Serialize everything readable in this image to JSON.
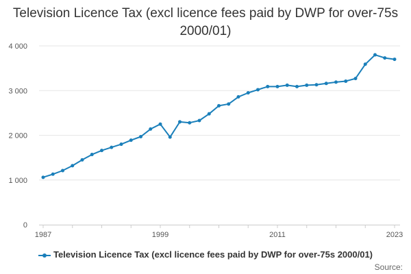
{
  "chart_data": {
    "type": "line",
    "title": "Television Licence Tax (excl licence fees paid by DWP for over-75s 2000/01)",
    "xlabel": "",
    "ylabel": "",
    "x": [
      1987,
      1988,
      1989,
      1990,
      1991,
      1992,
      1993,
      1994,
      1995,
      1996,
      1997,
      1998,
      1999,
      2000,
      2001,
      2002,
      2003,
      2004,
      2005,
      2006,
      2007,
      2008,
      2009,
      2010,
      2011,
      2012,
      2013,
      2014,
      2015,
      2016,
      2017,
      2018,
      2019,
      2020,
      2021,
      2022,
      2023
    ],
    "series": [
      {
        "name": "Television Licence Tax (excl licence fees paid by DWP for over-75s 2000/01)",
        "color": "#1a7fba",
        "values": [
          1060,
          1130,
          1210,
          1320,
          1450,
          1570,
          1660,
          1730,
          1800,
          1890,
          1970,
          2140,
          2250,
          1960,
          2300,
          2280,
          2330,
          2480,
          2660,
          2700,
          2860,
          2950,
          3020,
          3090,
          3090,
          3120,
          3090,
          3120,
          3130,
          3160,
          3190,
          3210,
          3270,
          3590,
          3800,
          3730,
          3700
        ]
      }
    ],
    "xlim": [
      1987,
      2023
    ],
    "ylim": [
      0,
      4000
    ],
    "x_ticks": [
      1987,
      1999,
      2011,
      2023
    ],
    "y_ticks": [
      0,
      1000,
      2000,
      3000,
      4000
    ],
    "y_tick_labels": [
      "0",
      "1 000",
      "2 000",
      "3 000",
      "4 000"
    ],
    "grid": true,
    "legend_position": "bottom",
    "source_label": "Source:"
  }
}
